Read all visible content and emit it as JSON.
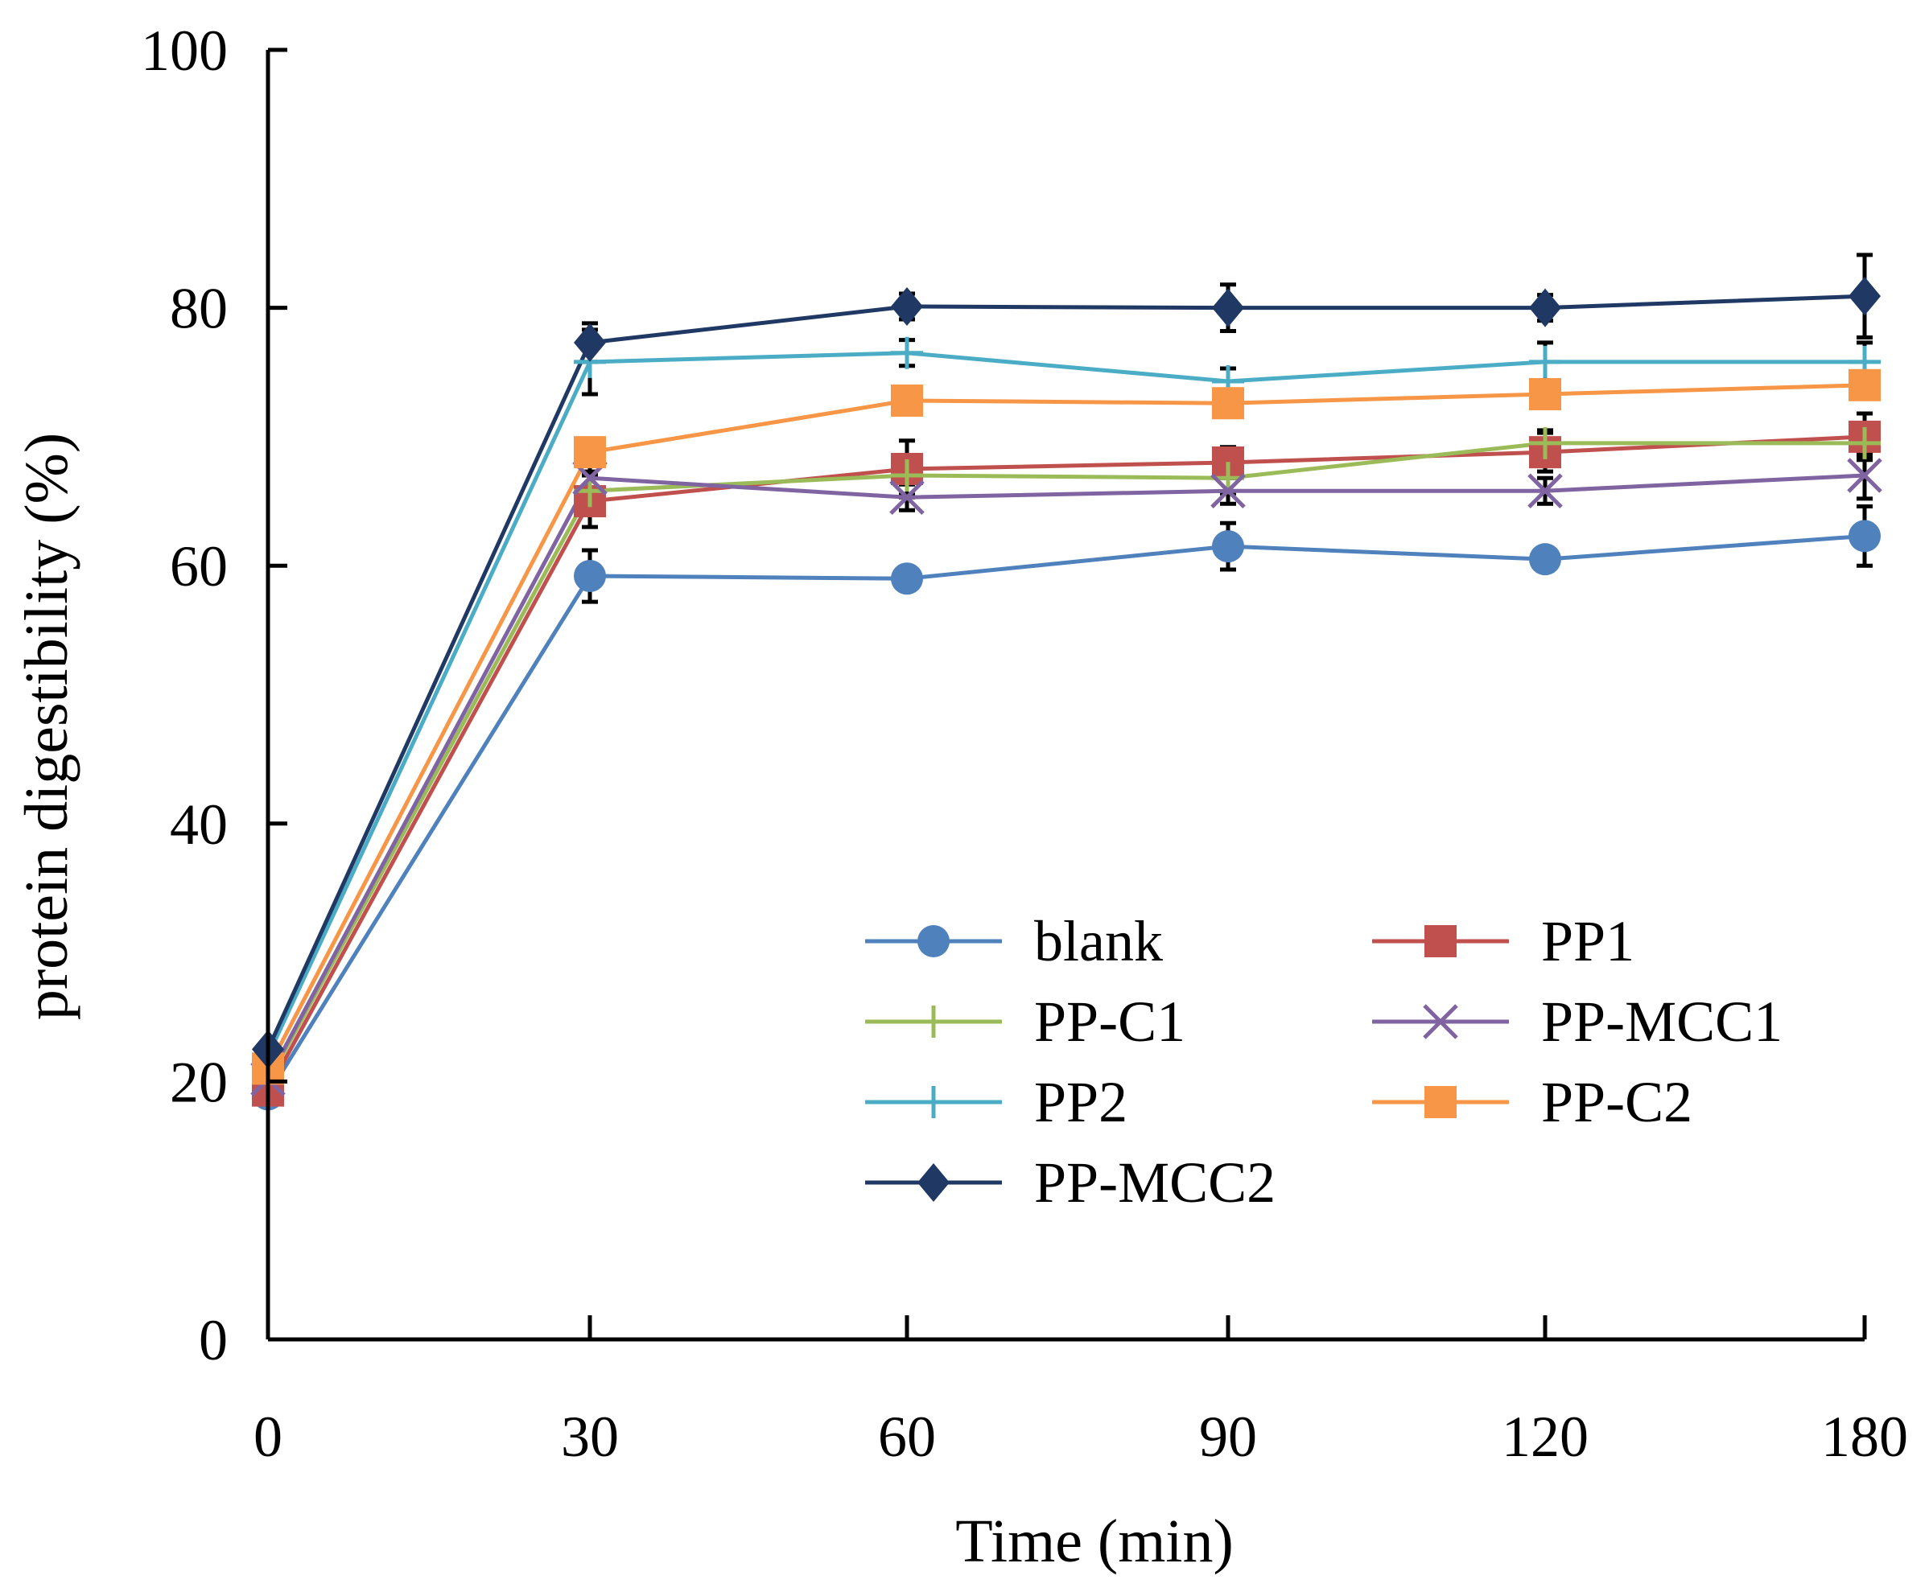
{
  "chart_data": {
    "type": "line",
    "title": "",
    "xlabel": "Time (min)",
    "ylabel": "protein digestibility (%)",
    "x": [
      0,
      30,
      60,
      90,
      120,
      180
    ],
    "x_tick_labels": [
      "0",
      "30",
      "60",
      "90",
      "120",
      "180"
    ],
    "y_ticks": [
      0,
      20,
      40,
      60,
      80,
      100
    ],
    "ylim": [
      0,
      100
    ],
    "legend_position": "lower-right",
    "series": [
      {
        "name": "blank",
        "color": "#4f81bd",
        "marker": "circle",
        "values": [
          19,
          59.2,
          59,
          61.5,
          60.5,
          62.3
        ],
        "errors": [
          0.5,
          2,
          0.8,
          1.8,
          0.8,
          2.3
        ]
      },
      {
        "name": "PP1",
        "color": "#c0504d",
        "marker": "square",
        "values": [
          19.3,
          65,
          67.5,
          68,
          68.8,
          70
        ],
        "errors": [
          0.5,
          2,
          2.2,
          1.2,
          1.5,
          1.8
        ]
      },
      {
        "name": "PP-C1",
        "color": "#9bbb59",
        "marker": "plus",
        "values": [
          20,
          65.8,
          67,
          66.8,
          69.5,
          69.5
        ],
        "errors": [
          0.5,
          1.5,
          1.5,
          1.2,
          1,
          1
        ]
      },
      {
        "name": "PP-MCC1",
        "color": "#8064a2",
        "marker": "cross",
        "values": [
          20.2,
          66.8,
          65.3,
          65.8,
          65.8,
          67
        ],
        "errors": [
          0.5,
          1.5,
          1,
          1,
          1,
          1.8
        ]
      },
      {
        "name": "PP2",
        "color": "#4bacc6",
        "marker": "plus",
        "values": [
          22,
          75.8,
          76.5,
          74.3,
          75.8,
          75.8
        ],
        "errors": [
          0.5,
          2.5,
          1,
          1,
          1.5,
          1.5
        ]
      },
      {
        "name": "PP-C2",
        "color": "#f79646",
        "marker": "square",
        "values": [
          21,
          68.8,
          72.8,
          72.6,
          73.3,
          74
        ],
        "errors": [
          0.5,
          1,
          1,
          1,
          1,
          1
        ]
      },
      {
        "name": "PP-MCC2",
        "color": "#1f3864",
        "marker": "diamond",
        "values": [
          22.5,
          77.3,
          80.1,
          80,
          80,
          80.9
        ],
        "errors": [
          0.5,
          1.5,
          1,
          1.8,
          1,
          3.2
        ]
      }
    ]
  }
}
